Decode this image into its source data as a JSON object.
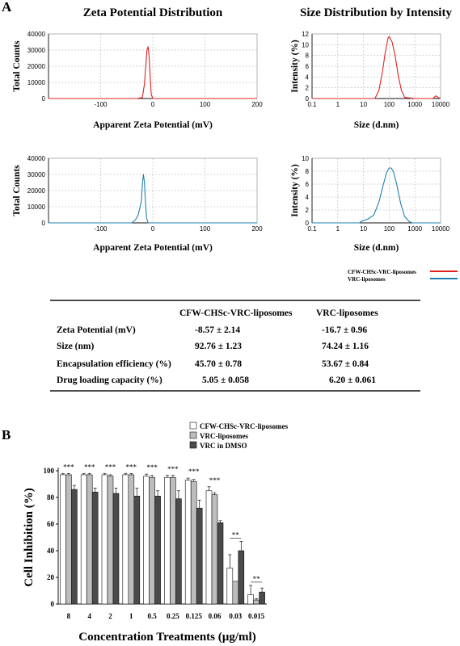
{
  "panel_labels": {
    "a": "A",
    "b": "B"
  },
  "legend_a": {
    "items": [
      {
        "label": "CFW-CHSc-VRC-liposomes",
        "color": "#e02020"
      },
      {
        "label": "VRC-liposomes",
        "color": "#1f7fb0"
      }
    ]
  },
  "table": {
    "columns": [
      "",
      "CFW-CHSc-VRC-liposomes",
      "VRC-liposomes"
    ],
    "rows": [
      [
        "Zeta Potential (mV)",
        "-8.57 ± 2.14",
        "-16.7 ± 0.96"
      ],
      [
        "Size (nm)",
        "92.76 ± 1.23",
        "74.24 ± 1.16"
      ],
      [
        "Encapsulation efficiency (%)",
        "45.70 ± 0.78",
        "53.67 ± 0.84"
      ],
      [
        "Drug loading capacity (%)",
        "5.05 ± 0.058",
        "6.20 ± 0.061"
      ]
    ]
  },
  "chart_data": [
    {
      "id": "zeta_cfw",
      "type": "line",
      "title": "Zeta Potential Distribution",
      "xlabel": "Apparent Zeta Potential (mV)",
      "ylabel": "Total Counts",
      "xlim": [
        -200,
        200
      ],
      "ylim": [
        0,
        40000
      ],
      "xticks": [
        -100,
        0,
        100,
        200
      ],
      "yticks": [
        0,
        10000,
        20000,
        30000,
        40000
      ],
      "grid": true,
      "color": "#e02020",
      "series": [
        {
          "x": [
            -200,
            -30,
            -20,
            -16,
            -13,
            -11,
            -9,
            -7,
            -5,
            -3,
            0,
            200
          ],
          "y": [
            0,
            0,
            600,
            9000,
            22000,
            30500,
            32000,
            26000,
            13000,
            2500,
            0,
            0
          ]
        }
      ]
    },
    {
      "id": "size_cfw",
      "type": "line",
      "title": "Size Distribution by Intensity",
      "xlabel": "Size (d.nm)",
      "ylabel": "Intensity (%)",
      "xscale": "log",
      "xlim": [
        0.1,
        10000
      ],
      "ylim": [
        0,
        12
      ],
      "xticks": [
        0.1,
        1,
        10,
        100,
        1000,
        10000
      ],
      "yticks": [
        0,
        2,
        4,
        6,
        8,
        10,
        12
      ],
      "grid": true,
      "color": "#e02020",
      "series": [
        {
          "x": [
            0.1,
            28,
            40,
            55,
            70,
            90,
            100,
            130,
            170,
            230,
            300,
            400,
            1000.0,
            5000,
            6500,
            8000,
            10000
          ],
          "y": [
            0,
            0,
            1.5,
            5,
            8.5,
            11.2,
            11.5,
            10.5,
            8,
            4,
            1.5,
            0.2,
            0,
            0,
            0.5,
            0.2,
            0
          ]
        }
      ]
    },
    {
      "id": "zeta_vrc",
      "type": "line",
      "xlabel": "Apparent Zeta Potential (mV)",
      "ylabel": "Total Counts",
      "xlim": [
        -200,
        200
      ],
      "ylim": [
        0,
        40000
      ],
      "xticks": [
        -100,
        0,
        100,
        200
      ],
      "yticks": [
        0,
        10000,
        20000,
        30000,
        40000
      ],
      "grid": true,
      "color": "#1f7fb0",
      "series": [
        {
          "x": [
            -200,
            -40,
            -33,
            -28,
            -25,
            -22,
            -20,
            -18,
            -16,
            -14,
            -12,
            -9,
            200
          ],
          "y": [
            0,
            0,
            2000,
            5000,
            9000,
            13000,
            24000,
            30000,
            25000,
            12000,
            3000,
            0,
            0
          ]
        }
      ]
    },
    {
      "id": "size_vrc",
      "type": "line",
      "xlabel": "Size (d.nm)",
      "ylabel": "Intensity (%)",
      "xscale": "log",
      "xlim": [
        0.1,
        10000
      ],
      "ylim": [
        0,
        10
      ],
      "xticks": [
        0.1,
        1,
        10,
        100,
        1000,
        10000
      ],
      "yticks": [
        0,
        2,
        4,
        6,
        8,
        10
      ],
      "grid": true,
      "color": "#1f7fb0",
      "series": [
        {
          "x": [
            0.1,
            7,
            9,
            15,
            25,
            40,
            60,
            80,
            100,
            120,
            150,
            200,
            280,
            400,
            600,
            800,
            10000
          ],
          "y": [
            0,
            0,
            0.3,
            0.6,
            1.2,
            3.2,
            6,
            7.8,
            8.5,
            8.5,
            7.8,
            5.8,
            3.0,
            1.0,
            0.2,
            0,
            0
          ]
        }
      ]
    },
    {
      "id": "inhibition",
      "type": "bar",
      "xlabel": "Concentration Treatments (µg/ml)",
      "ylabel": "Cell Inhibition (%)",
      "ylim": [
        0,
        100
      ],
      "yticks": [
        0,
        20,
        40,
        60,
        80,
        100
      ],
      "categories": [
        "8",
        "4",
        "2",
        "1",
        "0.5",
        "0.25",
        "0.125",
        "0.06",
        "0.03",
        "0.015"
      ],
      "significance": [
        "***",
        "***",
        "***",
        "***",
        "***",
        "***",
        "***",
        "***",
        "**",
        "**"
      ],
      "series": [
        {
          "name": "CFW-CHSc-VRC-liposomes",
          "fill": "#ffffff",
          "values": [
            97,
            97,
            97,
            97,
            96,
            95,
            93,
            85,
            27,
            7
          ],
          "errors": [
            1,
            1,
            1,
            1,
            1.5,
            1.5,
            1.5,
            3,
            10,
            7
          ]
        },
        {
          "name": "VRC-liposomes",
          "fill": "#bdbdbd",
          "values": [
            97,
            97,
            96,
            97,
            95,
            95,
            92,
            82,
            17,
            3
          ],
          "errors": [
            1,
            1,
            1,
            1,
            1.5,
            1.5,
            1.5,
            1.5,
            0,
            1
          ]
        },
        {
          "name": "VRC in DMSO",
          "fill": "#4a4a4a",
          "values": [
            86,
            84,
            83,
            81,
            81,
            79,
            72,
            61,
            40,
            9
          ],
          "errors": [
            3,
            3,
            4,
            6,
            4,
            6,
            6,
            1.5,
            7,
            3
          ]
        }
      ]
    }
  ]
}
